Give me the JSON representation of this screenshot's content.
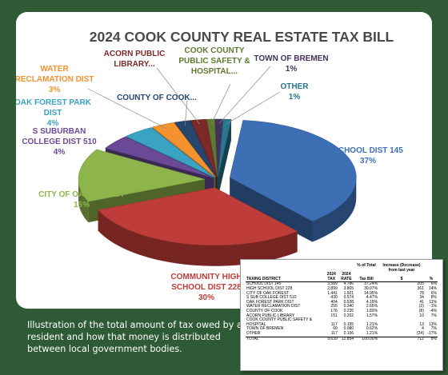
{
  "caption": "Illustration of the total amount of tax owed by a resident and how that money is distributed between local government bodies.",
  "colors": {
    "background": "#2f5a36",
    "panel": "#ffffff",
    "title": "#4a4a4a"
  },
  "chart_data": {
    "type": "pie",
    "title": "2024 COOK COUNTY REAL ESTATE TAX BILL",
    "style": "3d-exploded",
    "slices": [
      {
        "name": "SCHOOL DIST 145",
        "value": 37,
        "pct_label": "37%",
        "color": "#3d6fb5"
      },
      {
        "name": "COMMUNITY HIGH SCHOOL DIST 228",
        "value": 30,
        "pct_label": "30%",
        "color": "#be3c39"
      },
      {
        "name": "CITY OF OAK FOREST",
        "value": 15,
        "pct_label": "15%",
        "color": "#8db54b"
      },
      {
        "name": "S SUBURBAN COLLEGE DIST 510",
        "value": 4,
        "pct_label": "4%",
        "color": "#6a4a96"
      },
      {
        "name": "OAK FOREST PARK DIST",
        "value": 4,
        "pct_label": "4%",
        "color": "#3aa2c3"
      },
      {
        "name": "WATER RECLAMATION DIST",
        "value": 3,
        "pct_label": "3%",
        "color": "#f3922f"
      },
      {
        "name": "COUNTY OF COOK...",
        "value": 2,
        "pct_label": "",
        "color": "#27466f"
      },
      {
        "name": "ACORN PUBLIC LIBRARY...",
        "value": 2,
        "pct_label": "",
        "color": "#7c2927"
      },
      {
        "name": "COOK COUNTY PUBLIC SAFETY & HOSPITAL...",
        "value": 1,
        "pct_label": "",
        "color": "#5e7a31"
      },
      {
        "name": "TOWN OF BREMEN",
        "value": 1,
        "pct_label": "1%",
        "color": "#43315f"
      },
      {
        "name": "OTHER",
        "value": 1,
        "pct_label": "1%",
        "color": "#2a7590"
      }
    ]
  },
  "tax_table": {
    "header_row1": [
      "",
      "",
      "",
      "% of Total",
      "Increase (Decrease)",
      ""
    ],
    "header_row1b": [
      "",
      "",
      "",
      "",
      "from last year",
      ""
    ],
    "header_row2": [
      "",
      "2024",
      "2024",
      "",
      "",
      ""
    ],
    "header_row3": [
      "TAXING DISTRICT",
      "TAX",
      "RATE",
      "Tax Bill",
      "$",
      "%"
    ],
    "rows": [
      [
        "SCHOOL DIST 145",
        "3,589",
        "4.786",
        "37.24%",
        "205",
        "6%"
      ],
      [
        "HIGH SCHOOL DIST 228",
        "2,899",
        "3.865",
        "30.07%",
        "361",
        "14%"
      ],
      [
        "CITY OF OAK FOREST",
        "1,441",
        "1.921",
        "14.95%",
        "78",
        "6%"
      ],
      [
        "S SUB COLLEGE DIST 510",
        "430",
        "0.574",
        "4.47%",
        "34",
        "8%"
      ],
      [
        "OAK FOREST PARK DIST",
        "404",
        "0.538",
        "4.19%",
        "41",
        "11%"
      ],
      [
        "WATER RECLAMATION DIST",
        "255",
        "0.340",
        "2.65%",
        "(2)",
        "-1%"
      ],
      [
        "COUNTY OF COOK",
        "176",
        "0.235",
        "1.83%",
        "(8)",
        "-4%"
      ],
      [
        "ACORN PUBLIC LIBRARY",
        "151",
        "0.202",
        "1.57%",
        "10",
        "7%"
      ],
      [
        "COOK COUNTY PUBLIC SAFETY &",
        "",
        "",
        "",
        "",
        ""
      ],
      [
        "HOSPITAL",
        "117",
        "0.155",
        "1.21%",
        "13",
        "13%"
      ],
      [
        "TOWN OF BREMEN",
        "60",
        "0.080",
        "0.62%",
        "4",
        "7%"
      ],
      [
        "OTHER",
        "117",
        "0.156",
        "1.21%",
        "(24)",
        "-17%"
      ]
    ],
    "total": [
      "TOTAL",
      "9,639",
      "12.854",
      "100.00%",
      "712",
      "8%"
    ]
  }
}
